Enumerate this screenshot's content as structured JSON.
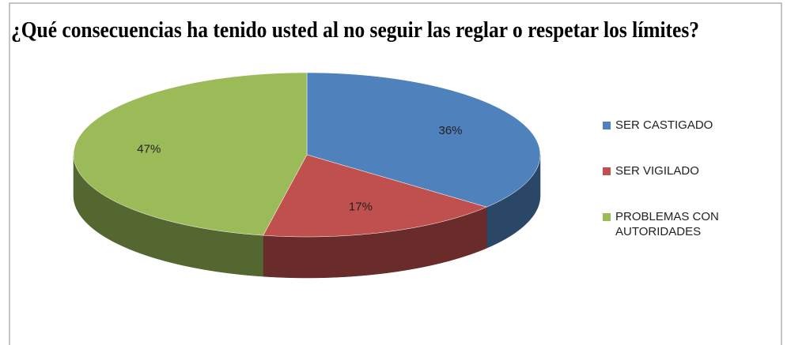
{
  "chart_data": {
    "type": "pie",
    "title": "¿Qué consecuencias ha tenido usted al no seguir las reglar o respetar los límites?",
    "categories": [
      "SER CASTIGADO",
      "SER VIGILADO",
      "PROBLEMAS CON AUTORIDADES"
    ],
    "values": [
      36,
      17,
      47
    ],
    "value_labels": [
      "36%",
      "17%",
      "47%"
    ],
    "colors": [
      "#4f81bd",
      "#c0504d",
      "#9bbb59"
    ],
    "legend": "right"
  }
}
